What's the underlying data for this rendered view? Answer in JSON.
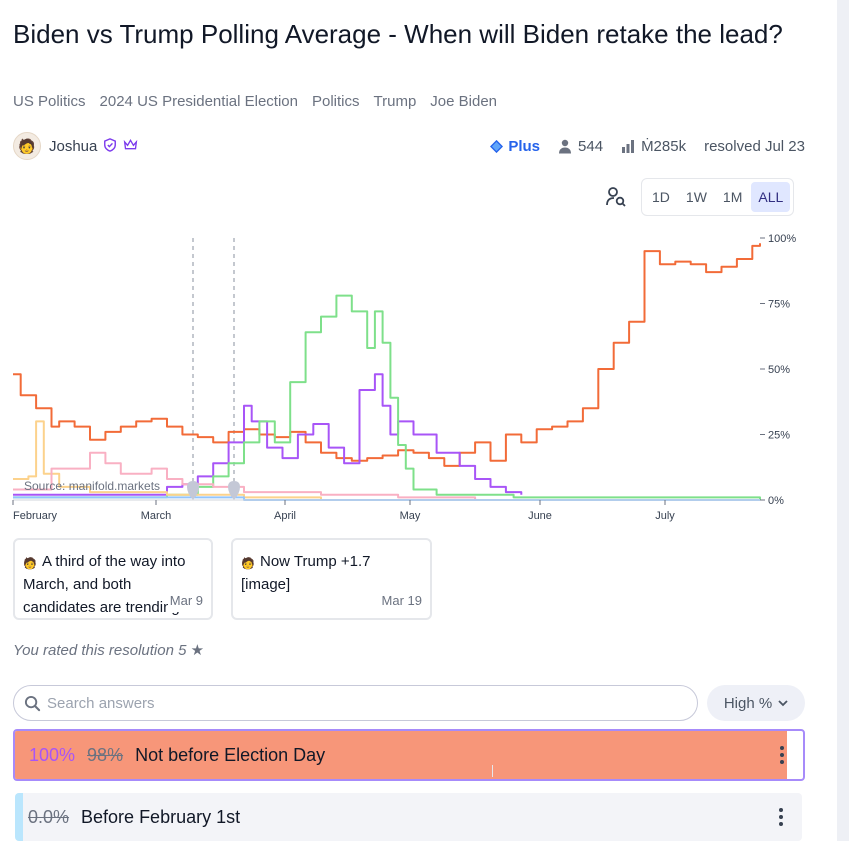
{
  "title": "Biden vs Trump Polling Average - When will Biden retake the lead?",
  "topics": [
    "US Politics",
    "2024 US Presidential Election",
    "Politics",
    "Trump",
    "Joe Biden"
  ],
  "author": {
    "name": "Joshua"
  },
  "stats": {
    "plus_label": "Plus",
    "traders": "544",
    "volume": "Ṁ285k",
    "resolved": "resolved Jul 23"
  },
  "time_ranges": [
    "1D",
    "1W",
    "1M",
    "ALL"
  ],
  "time_range_selected": "ALL",
  "chart_data": {
    "type": "line",
    "x_tick_labels": [
      "February",
      "March",
      "April",
      "May",
      "June",
      "July"
    ],
    "y_tick_labels": [
      "100%",
      "75%",
      "50%",
      "25%",
      "0%"
    ],
    "ylim": [
      0,
      100
    ],
    "source_label": "Source: manifold.markets",
    "annotations": [
      "Mar 9",
      "Mar 19"
    ],
    "series": [
      {
        "color": "#f26b38",
        "values": [
          [
            0,
            48
          ],
          [
            1,
            40
          ],
          [
            3,
            35
          ],
          [
            5,
            28
          ],
          [
            6,
            30
          ],
          [
            8,
            28
          ],
          [
            10,
            23
          ],
          [
            12,
            26
          ],
          [
            14,
            28
          ],
          [
            16,
            30
          ],
          [
            18,
            31
          ],
          [
            20,
            28
          ],
          [
            22,
            25
          ],
          [
            24,
            24
          ],
          [
            26,
            22
          ],
          [
            28,
            26
          ],
          [
            30,
            27
          ],
          [
            32,
            25
          ],
          [
            34,
            24
          ],
          [
            36,
            26
          ],
          [
            38,
            22
          ],
          [
            40,
            18
          ],
          [
            42,
            16
          ],
          [
            44,
            15
          ],
          [
            46,
            16
          ],
          [
            48,
            17
          ],
          [
            50,
            19
          ],
          [
            52,
            18
          ],
          [
            54,
            16
          ],
          [
            56,
            13
          ],
          [
            58,
            18
          ],
          [
            60,
            22
          ],
          [
            62,
            15
          ],
          [
            64,
            25
          ],
          [
            66,
            22
          ],
          [
            68,
            27
          ],
          [
            70,
            28
          ],
          [
            72,
            30
          ],
          [
            74,
            35
          ],
          [
            76,
            50
          ],
          [
            78,
            60
          ],
          [
            80,
            68
          ],
          [
            82,
            95
          ],
          [
            84,
            90
          ],
          [
            86,
            91
          ],
          [
            88,
            90
          ],
          [
            90,
            87
          ],
          [
            92,
            89
          ],
          [
            94,
            92
          ],
          [
            96,
            97
          ],
          [
            97,
            98
          ]
        ]
      },
      {
        "color": "#a855f7",
        "values": [
          [
            0,
            2
          ],
          [
            20,
            5
          ],
          [
            22,
            6
          ],
          [
            24,
            9
          ],
          [
            26,
            14
          ],
          [
            28,
            22
          ],
          [
            30,
            36
          ],
          [
            31,
            30
          ],
          [
            33,
            20
          ],
          [
            35,
            16
          ],
          [
            37,
            25
          ],
          [
            39,
            29
          ],
          [
            41,
            20
          ],
          [
            43,
            14
          ],
          [
            45,
            42
          ],
          [
            47,
            48
          ],
          [
            48,
            36
          ],
          [
            49,
            25
          ],
          [
            50,
            30
          ],
          [
            52,
            25
          ],
          [
            55,
            18
          ],
          [
            58,
            13
          ],
          [
            60,
            8
          ],
          [
            62,
            5
          ],
          [
            64,
            3
          ],
          [
            66,
            2
          ]
        ]
      },
      {
        "color": "#7ee08a",
        "values": [
          [
            0,
            1
          ],
          [
            20,
            2
          ],
          [
            24,
            5
          ],
          [
            26,
            9
          ],
          [
            28,
            14
          ],
          [
            30,
            22
          ],
          [
            32,
            30
          ],
          [
            34,
            22
          ],
          [
            36,
            45
          ],
          [
            38,
            64
          ],
          [
            40,
            70
          ],
          [
            42,
            78
          ],
          [
            44,
            72
          ],
          [
            46,
            58
          ],
          [
            47,
            72
          ],
          [
            48,
            60
          ],
          [
            49,
            39
          ],
          [
            50,
            21
          ],
          [
            51,
            12
          ],
          [
            52,
            4
          ],
          [
            55,
            2
          ],
          [
            65,
            1
          ],
          [
            97,
            0
          ]
        ]
      },
      {
        "color": "#fcd28c",
        "values": [
          [
            0,
            8
          ],
          [
            2,
            9
          ],
          [
            3,
            30
          ],
          [
            4,
            10
          ],
          [
            6,
            5
          ],
          [
            10,
            3
          ],
          [
            20,
            2
          ],
          [
            30,
            1
          ],
          [
            40,
            0
          ]
        ]
      },
      {
        "color": "#f9b0c3",
        "values": [
          [
            0,
            4
          ],
          [
            5,
            12
          ],
          [
            10,
            18
          ],
          [
            12,
            14
          ],
          [
            14,
            10
          ],
          [
            18,
            12
          ],
          [
            20,
            8
          ],
          [
            22,
            6
          ],
          [
            26,
            5
          ],
          [
            30,
            3
          ],
          [
            40,
            2
          ],
          [
            50,
            1
          ],
          [
            60,
            0
          ]
        ]
      },
      {
        "color": "#93c5fd",
        "values": [
          [
            0,
            1
          ],
          [
            30,
            0
          ],
          [
            97,
            0
          ]
        ]
      }
    ]
  },
  "comments": [
    {
      "text": "A third of the way into March, and both candidates are trending...",
      "date": "Mar 9"
    },
    {
      "text": "Now Trump +1.7 [image]",
      "date": "Mar 19"
    }
  ],
  "rating": {
    "text": "You rated this resolution 5",
    "star": "★"
  },
  "search": {
    "placeholder": "Search answers"
  },
  "sort": {
    "label": "High %"
  },
  "answers": [
    {
      "prob_new": "100%",
      "prob_old": "98%",
      "text": "Not before Election Day",
      "fill_fraction": 0.98,
      "color": "#f79679"
    },
    {
      "prob_old": "0.0%",
      "text": "Before February 1st",
      "color": "#bae6fd"
    }
  ]
}
